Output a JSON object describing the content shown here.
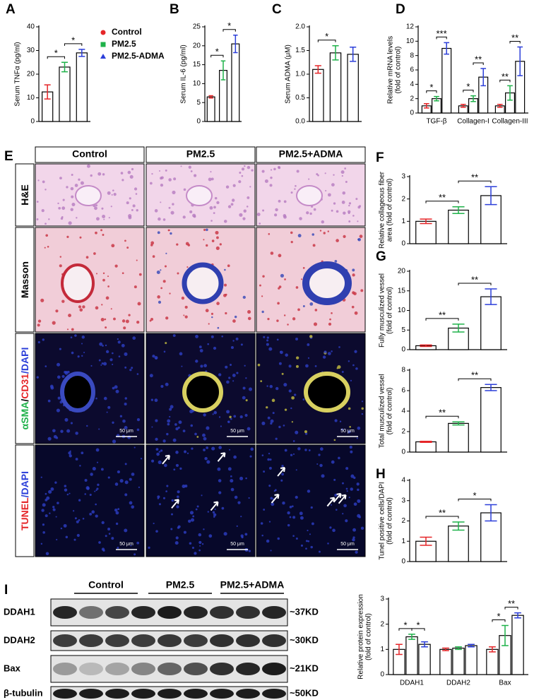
{
  "chart_data": [
    {
      "type": "bar",
      "panel": "A",
      "ylabel": [
        "Serum TNFα (pg/ml)"
      ],
      "categories": [
        null,
        null,
        null
      ],
      "values": [
        12.5,
        23,
        29
      ],
      "errors": [
        3,
        2,
        1.5
      ],
      "colors": [
        "#e52629",
        "#1fb24a",
        "#2c3fd9"
      ],
      "ylim": [
        0,
        40
      ],
      "yticks": [
        0,
        10,
        20,
        30,
        40
      ],
      "significance": [
        {
          "pair": [
            0,
            1
          ],
          "label": "*"
        },
        {
          "pair": [
            1,
            2
          ],
          "label": "*"
        }
      ],
      "legend": [
        {
          "label": "Control",
          "color": "#e52629",
          "marker": "circle"
        },
        {
          "label": "PM2.5",
          "color": "#1fb24a",
          "marker": "square"
        },
        {
          "label": "PM2.5-ADMA",
          "color": "#2c3fd9",
          "marker": "triangle"
        }
      ]
    },
    {
      "type": "bar",
      "panel": "B",
      "ylabel": [
        "Serum IL-6 (pg/ml)"
      ],
      "categories": [
        null,
        null,
        null
      ],
      "values": [
        6.5,
        13.5,
        20.5
      ],
      "errors": [
        0.3,
        2.5,
        2.3
      ],
      "colors": [
        "#e52629",
        "#1fb24a",
        "#2c3fd9"
      ],
      "ylim": [
        0,
        25
      ],
      "yticks": [
        0,
        5,
        10,
        15,
        20,
        25
      ],
      "significance": [
        {
          "pair": [
            0,
            1
          ],
          "label": "*"
        },
        {
          "pair": [
            1,
            2
          ],
          "label": "*"
        }
      ]
    },
    {
      "type": "bar",
      "panel": "C",
      "ylabel": [
        "Serum ADMA (μM)"
      ],
      "categories": [
        null,
        null,
        null
      ],
      "values": [
        1.1,
        1.45,
        1.42
      ],
      "errors": [
        0.08,
        0.15,
        0.15
      ],
      "colors": [
        "#e52629",
        "#1fb24a",
        "#2c3fd9"
      ],
      "ylim": [
        0,
        2
      ],
      "yticks": [
        {
          "value": 0,
          "label": "0.0"
        },
        {
          "value": 0.5,
          "label": "0.5"
        },
        {
          "value": 1,
          "label": "1.0"
        },
        {
          "value": 1.5,
          "label": "1.5"
        },
        {
          "value": 2,
          "label": "2.0"
        }
      ],
      "significance": [
        {
          "pair": [
            0,
            1
          ],
          "label": "*"
        }
      ]
    },
    {
      "type": "grouped-bar",
      "panel": "D",
      "ylabel": [
        "Relative mRNA levels",
        "(fold of control)"
      ],
      "categories": [
        "TGF-β",
        "Collagen-I",
        "Collagen-III"
      ],
      "series": [
        {
          "color": "#e52629",
          "values": [
            1,
            1,
            1
          ],
          "errors": [
            0.3,
            0.2,
            0.2
          ]
        },
        {
          "color": "#1fb24a",
          "values": [
            2,
            2,
            2.8
          ],
          "errors": [
            0.3,
            0.4,
            1
          ]
        },
        {
          "color": "#2c3fd9",
          "values": [
            9,
            5,
            7.2
          ],
          "errors": [
            0.8,
            1.2,
            2
          ]
        }
      ],
      "ylim": [
        0,
        12
      ],
      "yticks": [
        0,
        2,
        4,
        6,
        8,
        10,
        12
      ],
      "significance": [
        {
          "category": 0,
          "pair": [
            0,
            1
          ],
          "label": "*"
        },
        {
          "category": 0,
          "pair": [
            1,
            2
          ],
          "label": "***"
        },
        {
          "category": 1,
          "pair": [
            0,
            1
          ],
          "label": "*"
        },
        {
          "category": 1,
          "pair": [
            1,
            2
          ],
          "label": "**"
        },
        {
          "category": 2,
          "pair": [
            0,
            1
          ],
          "label": "**"
        },
        {
          "category": 2,
          "pair": [
            1,
            2
          ],
          "label": "**"
        }
      ]
    },
    {
      "type": "bar",
      "panel": "F",
      "ylabel": [
        "Relative collageous fiber",
        "area (fold of control)"
      ],
      "categories": [
        null,
        null,
        null
      ],
      "values": [
        1,
        1.5,
        2.15
      ],
      "errors": [
        0.1,
        0.15,
        0.4
      ],
      "colors": [
        "#e52629",
        "#1fb24a",
        "#2c3fd9"
      ],
      "ylim": [
        0,
        3
      ],
      "yticks": [
        0,
        1,
        2,
        3
      ],
      "significance": [
        {
          "pair": [
            0,
            1
          ],
          "label": "**"
        },
        {
          "pair": [
            1,
            2
          ],
          "label": "**"
        }
      ]
    },
    {
      "type": "bar",
      "panel": "G",
      "ylabel": [
        "Fully musculized vessel",
        "(fold of control)"
      ],
      "categories": [
        null,
        null,
        null
      ],
      "values": [
        1,
        5.5,
        13.5
      ],
      "errors": [
        0.2,
        1,
        2
      ],
      "colors": [
        "#e52629",
        "#1fb24a",
        "#2c3fd9"
      ],
      "ylim": [
        0,
        20
      ],
      "yticks": [
        0,
        5,
        10,
        15,
        20
      ],
      "significance": [
        {
          "pair": [
            0,
            1
          ],
          "label": "**"
        },
        {
          "pair": [
            1,
            2
          ],
          "label": "**"
        }
      ]
    },
    {
      "type": "bar",
      "ylabel": [
        "Total musculized vessel",
        "(fold of control)"
      ],
      "categories": [
        null,
        null,
        null
      ],
      "values": [
        1,
        2.8,
        6.3
      ],
      "errors": [
        0.05,
        0.15,
        0.3
      ],
      "colors": [
        "#e52629",
        "#1fb24a",
        "#2c3fd9"
      ],
      "ylim": [
        0,
        8
      ],
      "yticks": [
        0,
        2,
        4,
        6,
        8
      ],
      "significance": [
        {
          "pair": [
            0,
            1
          ],
          "label": "**"
        },
        {
          "pair": [
            1,
            2
          ],
          "label": "**"
        }
      ]
    },
    {
      "type": "bar",
      "panel": "H",
      "ylabel": [
        "Tunel positive cells/DAPI",
        "(fold of control)"
      ],
      "categories": [
        null,
        null,
        null
      ],
      "values": [
        1,
        1.75,
        2.4
      ],
      "errors": [
        0.2,
        0.2,
        0.4
      ],
      "colors": [
        "#e52629",
        "#1fb24a",
        "#2c3fd9"
      ],
      "ylim": [
        0,
        4
      ],
      "yticks": [
        0,
        1,
        2,
        3,
        4
      ],
      "significance": [
        {
          "pair": [
            0,
            1
          ],
          "label": "**"
        },
        {
          "pair": [
            1,
            2
          ],
          "label": "*"
        }
      ]
    },
    {
      "type": "grouped-bar",
      "ylabel": [
        "Relative protein expression",
        "(fold of control)"
      ],
      "categories": [
        "DDAH1",
        "DDAH2",
        "Bax"
      ],
      "series": [
        {
          "color": "#e52629",
          "values": [
            1,
            1,
            1
          ],
          "errors": [
            0.2,
            0.05,
            0.1
          ]
        },
        {
          "color": "#1fb24a",
          "values": [
            1.5,
            1.05,
            1.55
          ],
          "errors": [
            0.1,
            0.05,
            0.4
          ]
        },
        {
          "color": "#2c3fd9",
          "values": [
            1.2,
            1.15,
            2.35
          ],
          "errors": [
            0.1,
            0.05,
            0.1
          ]
        }
      ],
      "ylim": [
        0,
        3
      ],
      "yticks": [
        0,
        1,
        2,
        3
      ],
      "significance": [
        {
          "category": 0,
          "pair": [
            0,
            1
          ],
          "label": "*"
        },
        {
          "category": 0,
          "pair": [
            1,
            2
          ],
          "label": "*"
        },
        {
          "category": 2,
          "pair": [
            0,
            1
          ],
          "label": "*"
        },
        {
          "category": 2,
          "pair": [
            1,
            2
          ],
          "label": "**"
        }
      ]
    }
  ],
  "panel_E": {
    "letter": "E",
    "columns": [
      "Control",
      "PM2.5",
      "PM2.5+ADMA"
    ],
    "rows": [
      [
        {
          "text": "H&E",
          "color": "#000000"
        }
      ],
      [
        {
          "text": "Masson",
          "color": "#000000"
        }
      ],
      [
        {
          "text": "αSMA",
          "color": "#1fb24a"
        },
        {
          "text": "/",
          "color": "#000000"
        },
        {
          "text": "CD31",
          "color": "#e52629"
        },
        {
          "text": "/DAPI",
          "color": "#2c3fd9"
        }
      ],
      [
        {
          "text": "TUNEL",
          "color": "#e52629"
        },
        {
          "text": "/DAPI",
          "color": "#2c3fd9"
        }
      ]
    ],
    "scale_bar": "50 μm"
  },
  "panel_I_blot": {
    "letter": "I",
    "groups": [
      "Control",
      "PM2.5",
      "PM2.5+ADMA"
    ],
    "proteins": [
      "DDAH1",
      "DDAH2",
      "Bax",
      "β-tubulin"
    ],
    "sizes": [
      "~37KD",
      "~30KD",
      "~21KD",
      "~50KD"
    ]
  }
}
